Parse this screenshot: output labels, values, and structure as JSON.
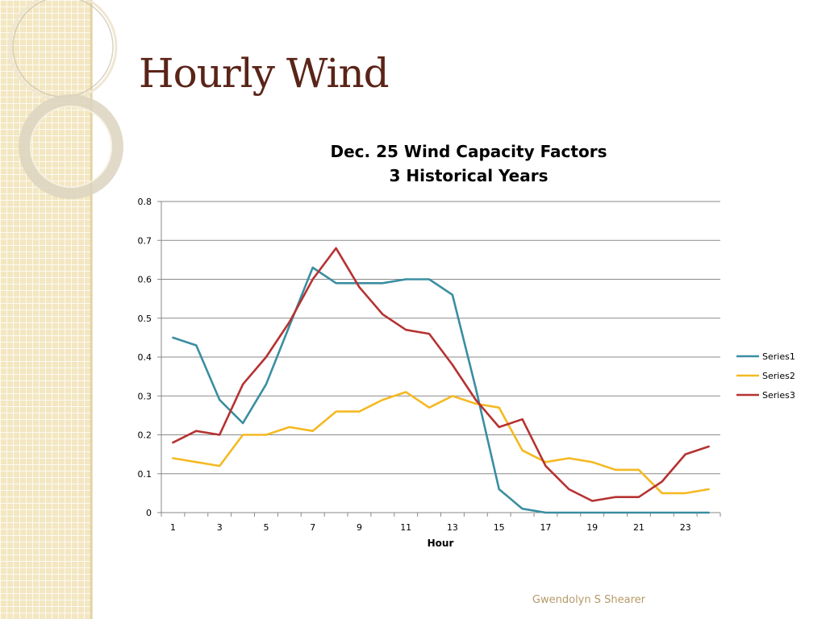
{
  "slide": {
    "title": "Hourly Wind",
    "footer": "Gwendolyn S Shearer"
  },
  "colors": {
    "title": "#5a2418",
    "series1": "#3a8ea1",
    "series2": "#f5b922",
    "series3": "#b63232",
    "grid": "#8a8a8a",
    "footer": "#b59a68"
  },
  "chart_data": {
    "type": "line",
    "title": "Dec. 25 Wind Capacity Factors",
    "subtitle": "3 Historical Years",
    "xlabel": "Hour",
    "ylabel": "",
    "x": [
      1,
      2,
      3,
      4,
      5,
      6,
      7,
      8,
      9,
      10,
      11,
      12,
      13,
      14,
      15,
      16,
      17,
      18,
      19,
      20,
      21,
      22,
      23,
      24
    ],
    "x_tick_labels": [
      "1",
      "3",
      "5",
      "7",
      "9",
      "11",
      "13",
      "15",
      "17",
      "19",
      "21",
      "23"
    ],
    "y_tick_labels": [
      "0",
      "0.1",
      "0.2",
      "0.3",
      "0.4",
      "0.5",
      "0.6",
      "0.7",
      "0.8"
    ],
    "ylim": [
      0,
      0.8
    ],
    "grid": true,
    "legend_position": "right",
    "series": [
      {
        "name": "Series1",
        "values": [
          0.45,
          0.43,
          0.29,
          0.23,
          0.33,
          0.48,
          0.63,
          0.59,
          0.59,
          0.59,
          0.6,
          0.6,
          0.56,
          0.32,
          0.06,
          0.01,
          0.0,
          0.0,
          0.0,
          0.0,
          0.0,
          0.0,
          0.0,
          0.0
        ]
      },
      {
        "name": "Series2",
        "values": [
          0.14,
          0.13,
          0.12,
          0.2,
          0.2,
          0.22,
          0.21,
          0.26,
          0.26,
          0.29,
          0.31,
          0.27,
          0.3,
          0.28,
          0.27,
          0.16,
          0.13,
          0.14,
          0.13,
          0.11,
          0.11,
          0.05,
          0.05,
          0.06
        ]
      },
      {
        "name": "Series3",
        "values": [
          0.18,
          0.21,
          0.2,
          0.33,
          0.4,
          0.49,
          0.6,
          0.68,
          0.58,
          0.51,
          0.47,
          0.46,
          0.38,
          0.29,
          0.22,
          0.24,
          0.12,
          0.06,
          0.03,
          0.04,
          0.04,
          0.08,
          0.15,
          0.17
        ]
      }
    ]
  }
}
